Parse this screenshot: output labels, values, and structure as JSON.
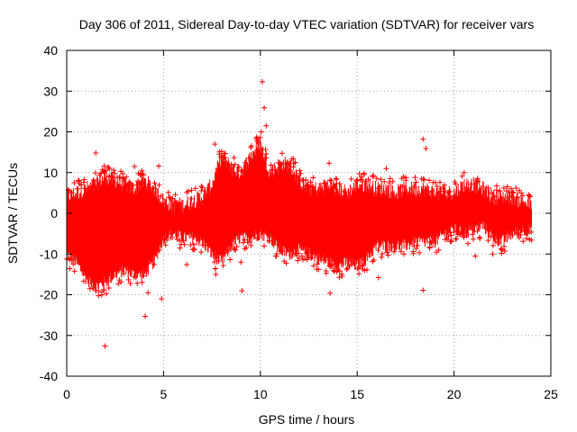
{
  "chart_data": {
    "type": "scatter",
    "title": "Day 306 of 2011, Sidereal Day-to-day VTEC variation (SDTVAR) for receiver vars",
    "xlabel": "GPS time / hours",
    "ylabel": "SDTVAR / TECUs",
    "xlim": [
      0,
      25
    ],
    "ylim": [
      -40,
      40
    ],
    "xticks": [
      0,
      5,
      10,
      15,
      20,
      25
    ],
    "yticks": [
      -40,
      -30,
      -20,
      -10,
      0,
      10,
      20,
      30,
      40
    ],
    "grid": true,
    "marker": "+",
    "series": [
      {
        "name": "vars",
        "color": "#ff0000",
        "envelope": {
          "x": [
            0.0,
            0.5,
            1.0,
            1.5,
            2.0,
            2.5,
            3.0,
            3.5,
            4.0,
            4.5,
            5.0,
            5.5,
            6.0,
            6.5,
            7.0,
            7.5,
            8.0,
            8.5,
            9.0,
            9.5,
            10.0,
            10.5,
            11.0,
            11.5,
            12.0,
            12.5,
            13.0,
            13.5,
            14.0,
            14.5,
            15.0,
            15.5,
            16.0,
            16.5,
            17.0,
            17.5,
            18.0,
            18.5,
            19.0,
            19.5,
            20.0,
            20.5,
            21.0,
            21.5,
            22.0,
            22.5,
            23.0,
            23.5,
            24.0
          ],
          "low": [
            -10,
            -12,
            -16,
            -18,
            -17,
            -15,
            -14,
            -15,
            -15,
            -12,
            -6,
            -5,
            -6,
            -6,
            -7,
            -10,
            -12,
            -8,
            -6,
            -6,
            -5,
            -6,
            -9,
            -10,
            -9,
            -10,
            -11,
            -12,
            -13,
            -12,
            -13,
            -11,
            -8,
            -8,
            -8,
            -8,
            -7,
            -7,
            -7,
            -5,
            -4,
            -5,
            -4,
            -3,
            -6,
            -7,
            -5,
            -4,
            -4
          ],
          "high": [
            4,
            5,
            6,
            7,
            9,
            8,
            7,
            6,
            8,
            6,
            3,
            2,
            2,
            3,
            4,
            7,
            14,
            11,
            10,
            14,
            17,
            10,
            12,
            12,
            8,
            6,
            6,
            7,
            6,
            5,
            7,
            7,
            6,
            6,
            5,
            6,
            6,
            6,
            5,
            5,
            5,
            7,
            7,
            6,
            4,
            4,
            4,
            3,
            2
          ]
        },
        "points": [
          [
            1.98,
            -32.6
          ],
          [
            4.05,
            -25.3
          ],
          [
            4.2,
            -19.5
          ],
          [
            4.5,
            6.0
          ],
          [
            4.75,
            11.6
          ],
          [
            4.9,
            -21.0
          ],
          [
            10.1,
            32.3
          ],
          [
            10.2,
            25.9
          ],
          [
            10.3,
            21.5
          ],
          [
            10.05,
            20.0
          ],
          [
            9.05,
            -19.0
          ],
          [
            18.4,
            18.2
          ],
          [
            18.55,
            15.9
          ],
          [
            18.4,
            -18.9
          ],
          [
            13.55,
            12.3
          ],
          [
            1.5,
            14.8
          ],
          [
            2.0,
            10.5
          ],
          [
            7.65,
            17.0
          ],
          [
            8.0,
            15.2
          ],
          [
            15.35,
            9.5
          ],
          [
            16.5,
            11.0
          ],
          [
            17.4,
            9.0
          ],
          [
            6.2,
            -12.6
          ],
          [
            7.7,
            -15.0
          ],
          [
            9.0,
            -12.0
          ],
          [
            12.0,
            -11.0
          ],
          [
            16.1,
            -15.8
          ],
          [
            21.1,
            -10.5
          ],
          [
            22.0,
            -10.0
          ],
          [
            13.6,
            -19.6
          ],
          [
            3.5,
            11.5
          ],
          [
            8.5,
            12.0
          ],
          [
            11.8,
            12.5
          ],
          [
            19.3,
            6.0
          ],
          [
            1.2,
            -18.5
          ]
        ]
      }
    ]
  }
}
